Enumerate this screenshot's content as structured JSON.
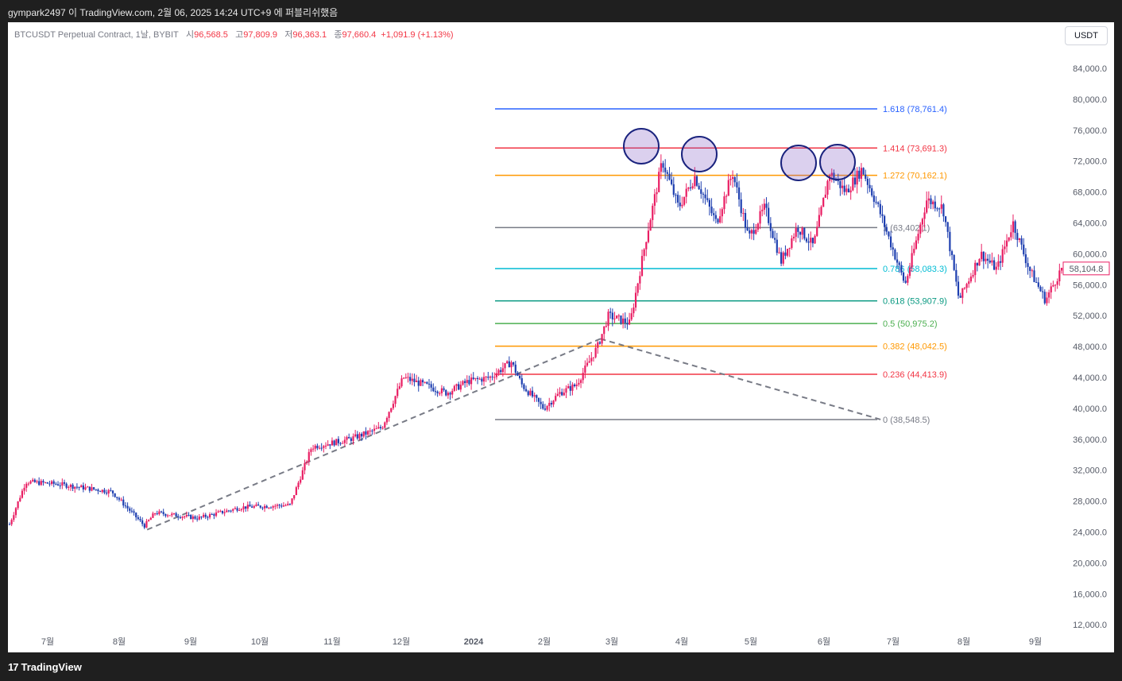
{
  "header": {
    "publish_info": "gympark2497 이 TradingView.com, 2월 06, 2025 14:24 UTC+9 에 퍼블리쉬했음"
  },
  "legend": {
    "symbol": "BTCUSDT Perpetual Contract, 1날, BYBIT",
    "open_label": "시",
    "open_value": "96,568.5",
    "high_label": "고",
    "high_value": "97,809.9",
    "low_label": "저",
    "low_value": "96,363.1",
    "close_label": "종",
    "close_value": "97,660.4",
    "change": "+1,091.9 (+1.13%)"
  },
  "currency_button": "USDT",
  "brand": {
    "name": "TradingView",
    "logo_glyph": "17"
  },
  "colors": {
    "up": "#e91e63",
    "down": "#1e3fb0",
    "price_tag": "#e91e63"
  },
  "chart_data": {
    "type": "candlestick",
    "yaxis_ticks": [
      84000,
      80000,
      76000,
      72000,
      68000,
      64000,
      60000,
      56000,
      52000,
      48000,
      44000,
      40000,
      36000,
      32000,
      28000,
      24000,
      20000,
      16000,
      12000
    ],
    "yaxis_tick_labels": [
      "84,000.0",
      "80,000.0",
      "76,000.0",
      "72,000.0",
      "68,000.0",
      "64,000.0",
      "60,000.0",
      "56,000.0",
      "52,000.0",
      "48,000.0",
      "44,000.0",
      "40,000.0",
      "36,000.0",
      "32,000.0",
      "28,000.0",
      "24,000.0",
      "20,000.0",
      "16,000.0",
      "12,000.0"
    ],
    "ylim": [
      9000,
      88000
    ],
    "xaxis_labels": [
      "7월",
      "8월",
      "9월",
      "10월",
      "11월",
      "12월",
      "2024",
      "2월",
      "3월",
      "4월",
      "5월",
      "6월",
      "7월",
      "8월",
      "9월"
    ],
    "last_price_label": "58,104.8",
    "last_price": 58104.8,
    "fibonacci": [
      {
        "ratio": 1.618,
        "price": 78761.4,
        "label": "1.618 (78,761.4)",
        "color": "#2962ff"
      },
      {
        "ratio": 1.414,
        "price": 73691.3,
        "label": "1.414 (73,691.3)",
        "color": "#f23645"
      },
      {
        "ratio": 1.272,
        "price": 70162.1,
        "label": "1.272 (70,162.1)",
        "color": "#ff9800"
      },
      {
        "ratio": 1,
        "price": 63402.1,
        "label": "1 (63,402.1)",
        "color": "#787b86"
      },
      {
        "ratio": 0.786,
        "price": 58083.3,
        "label": "0.786 (58,083.3)",
        "color": "#00bcd4"
      },
      {
        "ratio": 0.618,
        "price": 53907.9,
        "label": "0.618 (53,907.9)",
        "color": "#089981"
      },
      {
        "ratio": 0.5,
        "price": 50975.2,
        "label": "0.5 (50,975.2)",
        "color": "#4caf50"
      },
      {
        "ratio": 0.382,
        "price": 48042.5,
        "label": "0.382 (48,042.5)",
        "color": "#ff9800"
      },
      {
        "ratio": 0.236,
        "price": 44413.9,
        "label": "0.236 (44,413.9)",
        "color": "#f23645"
      },
      {
        "ratio": 0,
        "price": 38548.5,
        "label": "0 (38,548.5)",
        "color": "#787b86"
      }
    ],
    "price_path": [
      [
        2023.53,
        25000
      ],
      [
        2023.56,
        30500
      ],
      [
        2023.62,
        30200
      ],
      [
        2023.72,
        29200
      ],
      [
        2023.78,
        24800
      ],
      [
        2023.8,
        26500
      ],
      [
        2023.88,
        25800
      ],
      [
        2023.96,
        27200
      ],
      [
        2024.05,
        27500
      ],
      [
        2024.09,
        35000
      ],
      [
        2024.16,
        36000
      ],
      [
        2024.22,
        37500
      ],
      [
        2024.26,
        44000
      ],
      [
        2024.34,
        42000
      ],
      [
        2024.38,
        43500
      ],
      [
        2024.42,
        44000
      ],
      [
        2024.46,
        46000
      ],
      [
        2024.48,
        43000
      ],
      [
        2024.52,
        40000
      ],
      [
        2024.55,
        42000
      ],
      [
        2024.58,
        43000
      ],
      [
        2024.62,
        48000
      ],
      [
        2024.64,
        52000
      ],
      [
        2024.68,
        51000
      ],
      [
        2024.71,
        62000
      ],
      [
        2024.74,
        72000
      ],
      [
        2024.77,
        66000
      ],
      [
        2024.8,
        70000
      ],
      [
        2024.84,
        64000
      ],
      [
        2024.87,
        70500
      ],
      [
        2024.9,
        62000
      ],
      [
        2024.93,
        66000
      ],
      [
        2024.96,
        59000
      ],
      [
        2024.99,
        63500
      ],
      [
        2025.02,
        61000
      ],
      [
        2025.05,
        70500
      ],
      [
        2025.08,
        68000
      ],
      [
        2025.11,
        71000
      ],
      [
        2025.14,
        66000
      ],
      [
        2025.17,
        60000
      ],
      [
        2025.19,
        56000
      ],
      [
        2025.23,
        67000
      ],
      [
        2025.26,
        66000
      ],
      [
        2025.29,
        54000
      ],
      [
        2025.33,
        60000
      ],
      [
        2025.36,
        58000
      ],
      [
        2025.39,
        64000
      ],
      [
        2025.42,
        58000
      ],
      [
        2025.45,
        54000
      ],
      [
        2025.48,
        58100
      ]
    ]
  }
}
